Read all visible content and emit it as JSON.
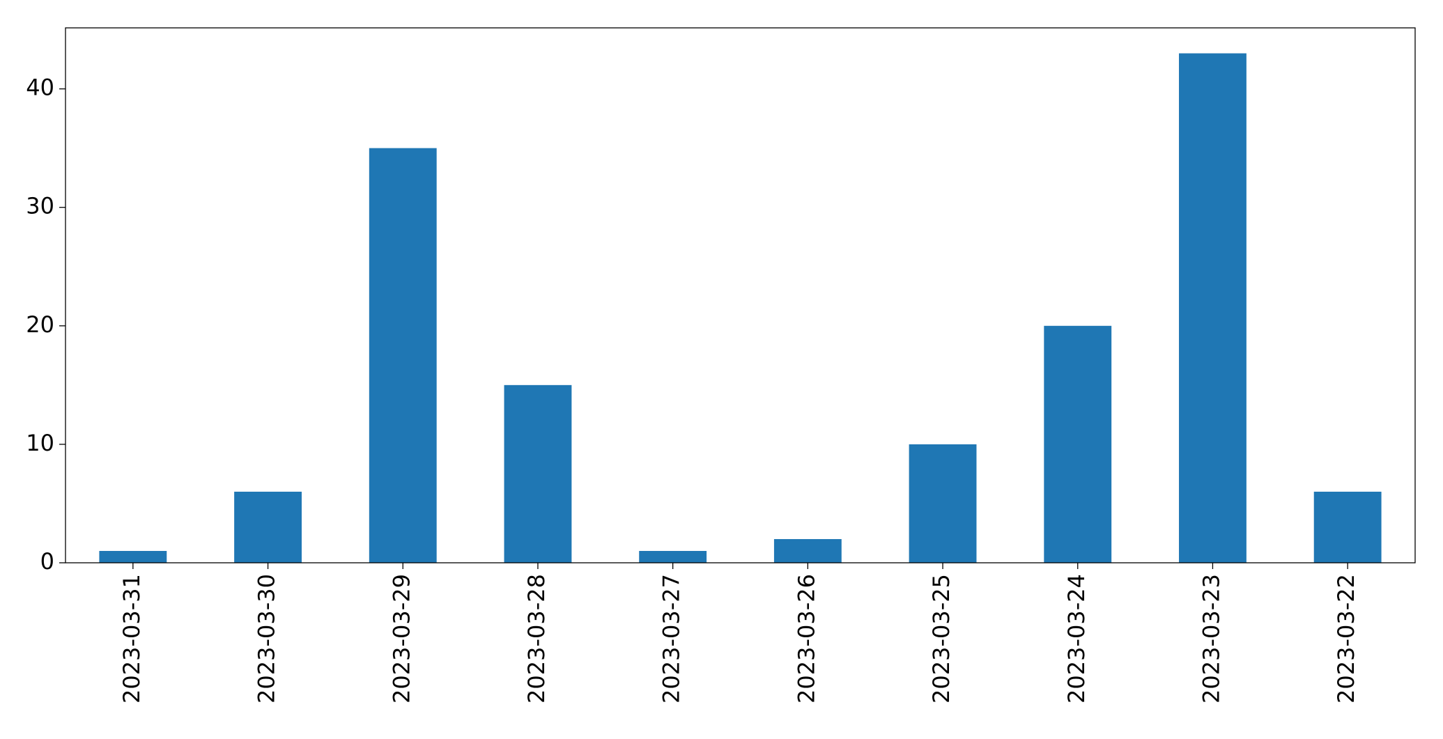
{
  "chart_data": {
    "type": "bar",
    "categories": [
      "2023-03-31",
      "2023-03-30",
      "2023-03-29",
      "2023-03-28",
      "2023-03-27",
      "2023-03-26",
      "2023-03-25",
      "2023-03-24",
      "2023-03-23",
      "2023-03-22"
    ],
    "values": [
      1,
      6,
      35,
      15,
      1,
      2,
      10,
      20,
      43,
      6
    ],
    "color": "#1f77b4",
    "ylim": [
      0,
      45.15
    ],
    "yticks": [
      0,
      10,
      20,
      30,
      40
    ],
    "grid": false
  }
}
